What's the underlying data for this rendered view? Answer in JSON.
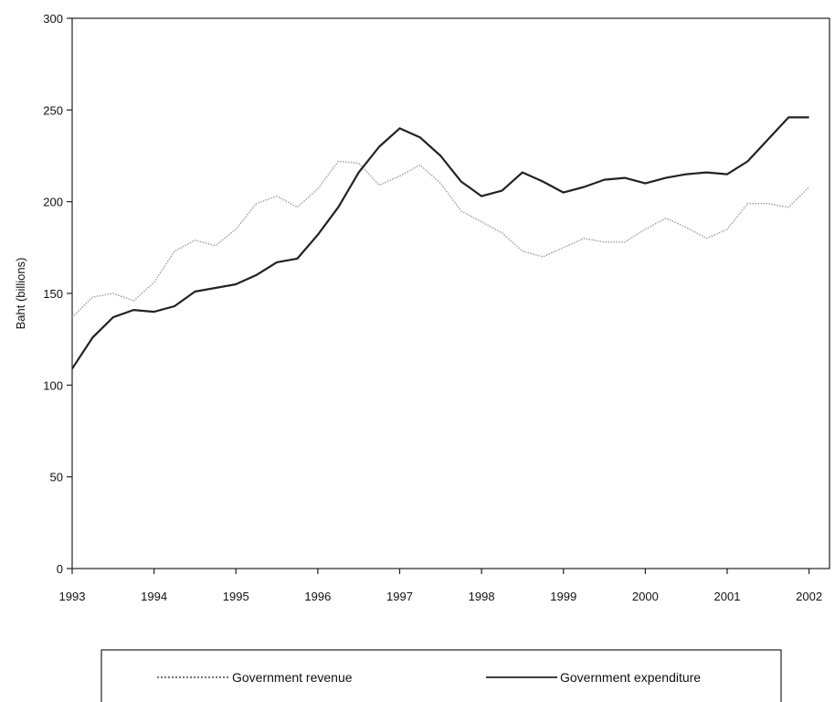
{
  "chart_data": {
    "type": "line",
    "title": "",
    "xlabel": "",
    "ylabel": "Baht (billions)",
    "xlim": [
      1993,
      2002.25
    ],
    "ylim": [
      0,
      300
    ],
    "yticks": [
      0,
      50,
      100,
      150,
      200,
      250,
      300
    ],
    "xticks": [
      1993,
      1994,
      1995,
      1996,
      1997,
      1998,
      1999,
      2000,
      2001,
      2002
    ],
    "grid": false,
    "legend_position": "bottom",
    "series": [
      {
        "name": "Government revenue",
        "style": "dotted",
        "color": "#9a9a9a",
        "x": [
          1993,
          1993.25,
          1993.5,
          1993.75,
          1994,
          1994.25,
          1994.5,
          1994.75,
          1995,
          1995.25,
          1995.5,
          1995.75,
          1996,
          1996.25,
          1996.5,
          1996.75,
          1997,
          1997.25,
          1997.5,
          1997.75,
          1998,
          1998.25,
          1998.5,
          1998.75,
          1999,
          1999.25,
          1999.5,
          1999.75,
          2000,
          2000.25,
          2000.5,
          2000.75,
          2001,
          2001.25,
          2001.5,
          2001.75,
          2002
        ],
        "y": [
          137,
          148,
          150,
          146,
          156,
          173,
          179,
          176,
          185,
          199,
          203,
          197,
          207,
          222,
          221,
          209,
          214,
          220,
          210,
          195,
          189,
          183,
          173,
          170,
          175,
          180,
          178,
          178,
          185,
          191,
          186,
          180,
          185,
          199,
          199,
          197,
          208
        ]
      },
      {
        "name": "Government expenditure",
        "style": "solid",
        "color": "#222222",
        "x": [
          1993,
          1993.25,
          1993.5,
          1993.75,
          1994,
          1994.25,
          1994.5,
          1994.75,
          1995,
          1995.25,
          1995.5,
          1995.75,
          1996,
          1996.25,
          1996.5,
          1996.75,
          1997,
          1997.25,
          1997.5,
          1997.75,
          1998,
          1998.25,
          1998.5,
          1998.75,
          1999,
          1999.25,
          1999.5,
          1999.75,
          2000,
          2000.25,
          2000.5,
          2000.75,
          2001,
          2001.25,
          2001.5,
          2001.75,
          2002
        ],
        "y": [
          109,
          126,
          137,
          141,
          140,
          143,
          151,
          153,
          155,
          160,
          167,
          169,
          182,
          197,
          216,
          230,
          240,
          235,
          225,
          211,
          203,
          206,
          216,
          211,
          205,
          208,
          212,
          213,
          210,
          213,
          215,
          216,
          215,
          222,
          234,
          246,
          246
        ]
      }
    ]
  }
}
